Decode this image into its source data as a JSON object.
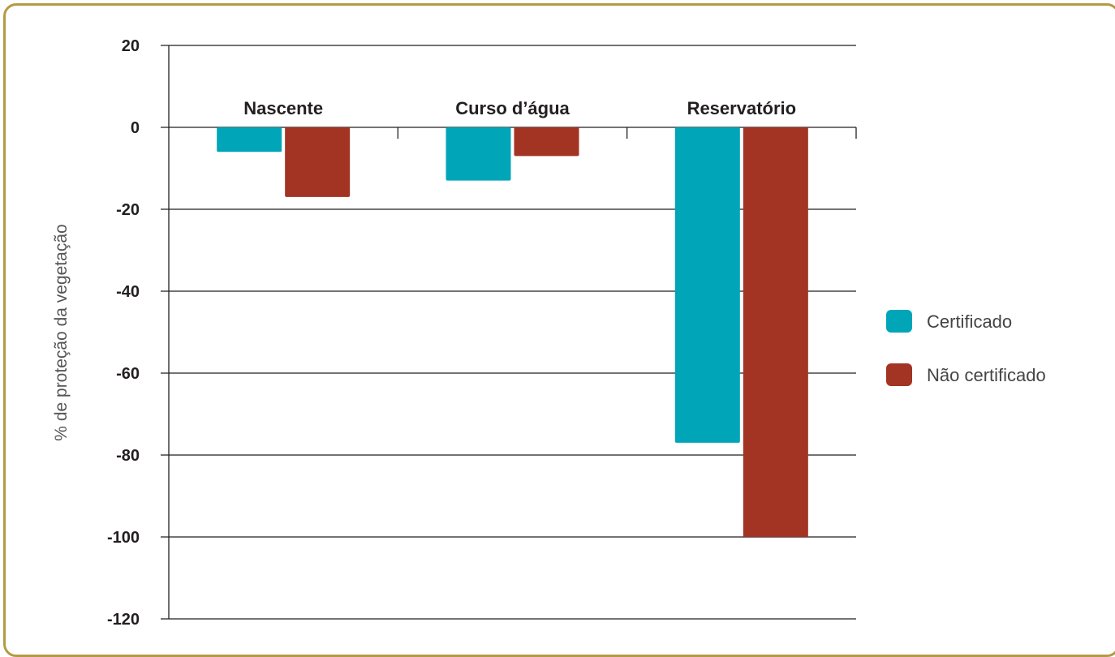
{
  "chart_data": {
    "type": "bar",
    "categories": [
      "Nascente",
      "Curso d’água",
      "Reservatório"
    ],
    "series": [
      {
        "name": "Certificado",
        "values": [
          -6,
          -13,
          -77
        ],
        "color": "#00a6b8"
      },
      {
        "name": "Não certificado",
        "values": [
          -17,
          -7,
          -100
        ],
        "color": "#a33323"
      }
    ],
    "ylabel": "% de proteção da vegetação",
    "xlabel": "",
    "ylim": [
      -120,
      20
    ],
    "yticks": [
      20,
      0,
      -20,
      -40,
      -60,
      -80,
      -100,
      -120
    ],
    "grid": true,
    "legend_position": "right",
    "frame_color": "#b49a45"
  }
}
